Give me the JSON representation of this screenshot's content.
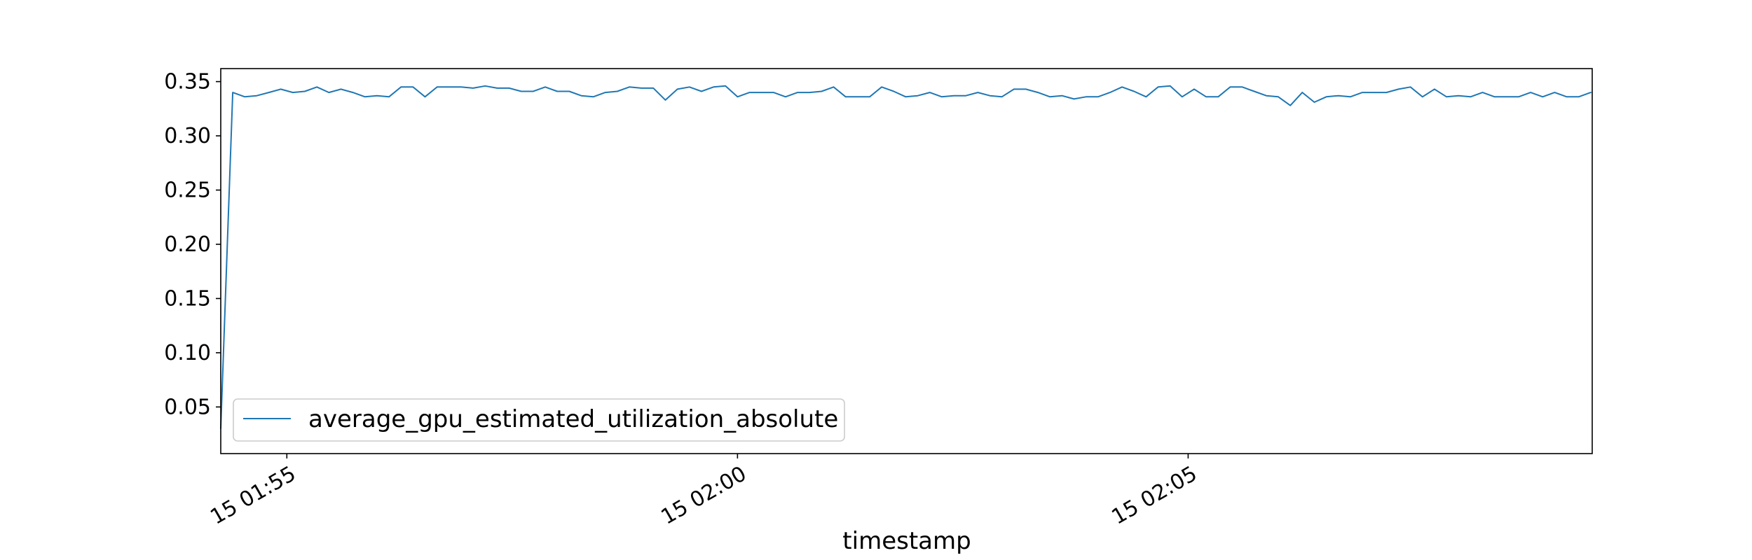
{
  "chart_data": {
    "type": "line",
    "title": "",
    "xlabel": "timestamp",
    "ylabel": "",
    "x_tick_labels": [
      "15 01:55",
      "15 02:00",
      "15 02:05"
    ],
    "y_tick_labels": [
      "0.05",
      "0.10",
      "0.15",
      "0.20",
      "0.25",
      "0.30",
      "0.35"
    ],
    "y_ticks": [
      0.05,
      0.1,
      0.15,
      0.2,
      0.25,
      0.3,
      0.35
    ],
    "x_ticks_time": [
      "01:55:00",
      "02:00:00",
      "02:05:00"
    ],
    "ylim": [
      0.007,
      0.362
    ],
    "xlim_time": [
      "01:54:16",
      "02:09:29"
    ],
    "grid": false,
    "legend_position": "lower left",
    "series": [
      {
        "name": "average_gpu_estimated_utilization_absolute",
        "color": "#1f77b4",
        "x": [
          "01:54:16",
          "01:54:24",
          "01:54:32",
          "01:54:40",
          "01:54:48",
          "01:54:56",
          "01:55:04",
          "01:55:12",
          "01:55:20",
          "01:55:28",
          "01:55:36",
          "01:55:44",
          "01:55:52",
          "01:56:00",
          "01:56:08",
          "01:56:16",
          "01:56:24",
          "01:56:32",
          "01:56:40",
          "01:56:48",
          "01:56:56",
          "01:57:04",
          "01:57:12",
          "01:57:20",
          "01:57:28",
          "01:57:36",
          "01:57:44",
          "01:57:52",
          "01:58:00",
          "01:58:08",
          "01:58:16",
          "01:58:24",
          "01:58:32",
          "01:58:40",
          "01:58:48",
          "01:58:56",
          "01:59:04",
          "01:59:12",
          "01:59:20",
          "01:59:28",
          "01:59:36",
          "01:59:44",
          "01:59:52",
          "02:00:00",
          "02:00:08",
          "02:00:16",
          "02:00:24",
          "02:00:32",
          "02:00:40",
          "02:00:48",
          "02:00:56",
          "02:01:04",
          "02:01:12",
          "02:01:20",
          "02:01:28",
          "02:01:36",
          "02:01:44",
          "02:01:52",
          "02:02:00",
          "02:02:08",
          "02:02:16",
          "02:02:24",
          "02:02:32",
          "02:02:40",
          "02:02:48",
          "02:02:56",
          "02:03:04",
          "02:03:12",
          "02:03:20",
          "02:03:28",
          "02:03:36",
          "02:03:44",
          "02:03:52",
          "02:04:00",
          "02:04:08",
          "02:04:16",
          "02:04:24",
          "02:04:32",
          "02:04:40",
          "02:04:48",
          "02:04:56",
          "02:05:04",
          "02:05:12",
          "02:05:20",
          "02:05:28",
          "02:05:36",
          "02:05:44",
          "02:05:52",
          "02:06:00",
          "02:06:08",
          "02:06:16",
          "02:06:24",
          "02:06:32",
          "02:06:40",
          "02:06:48",
          "02:06:56",
          "02:07:04",
          "02:07:12",
          "02:07:20",
          "02:07:28",
          "02:07:36",
          "02:07:44",
          "02:07:52",
          "02:08:00",
          "02:08:08",
          "02:08:16",
          "02:08:24",
          "02:08:32",
          "02:08:40",
          "02:08:48",
          "02:08:56",
          "02:09:04",
          "02:09:12",
          "02:09:20",
          "02:09:28"
        ],
        "y": [
          0.03,
          0.34,
          0.336,
          0.337,
          0.34,
          0.343,
          0.34,
          0.341,
          0.345,
          0.34,
          0.343,
          0.34,
          0.336,
          0.337,
          0.336,
          0.345,
          0.345,
          0.336,
          0.345,
          0.345,
          0.345,
          0.344,
          0.346,
          0.344,
          0.344,
          0.341,
          0.341,
          0.345,
          0.341,
          0.341,
          0.337,
          0.336,
          0.34,
          0.341,
          0.345,
          0.344,
          0.344,
          0.333,
          0.343,
          0.345,
          0.341,
          0.345,
          0.346,
          0.336,
          0.34,
          0.34,
          0.34,
          0.336,
          0.34,
          0.34,
          0.341,
          0.345,
          0.336,
          0.336,
          0.336,
          0.345,
          0.341,
          0.336,
          0.337,
          0.34,
          0.336,
          0.337,
          0.337,
          0.34,
          0.337,
          0.336,
          0.343,
          0.343,
          0.34,
          0.336,
          0.337,
          0.334,
          0.336,
          0.336,
          0.34,
          0.345,
          0.341,
          0.336,
          0.345,
          0.346,
          0.336,
          0.343,
          0.336,
          0.336,
          0.345,
          0.345,
          0.341,
          0.337,
          0.336,
          0.328,
          0.34,
          0.331,
          0.336,
          0.337,
          0.336,
          0.34,
          0.34,
          0.34,
          0.343,
          0.345,
          0.336,
          0.343,
          0.336,
          0.337,
          0.336,
          0.34,
          0.336,
          0.336,
          0.336,
          0.34,
          0.336,
          0.34,
          0.336,
          0.336,
          0.34
        ]
      }
    ]
  }
}
